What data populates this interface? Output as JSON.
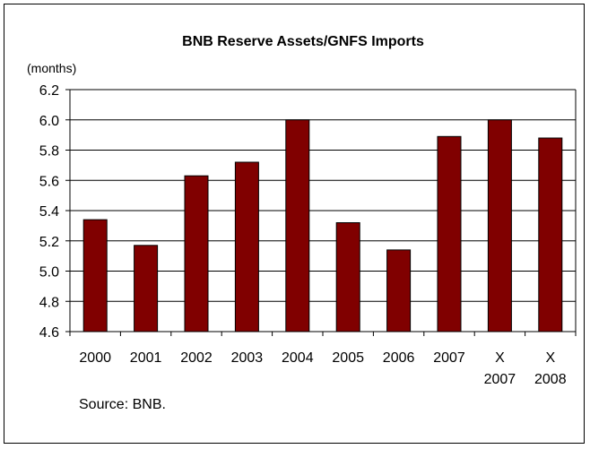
{
  "chart_data": {
    "type": "bar",
    "title": "BNB Reserve Assets/GNFS Imports",
    "ylabel": "(months)",
    "xlabel": "",
    "categories": [
      [
        "2000"
      ],
      [
        "2001"
      ],
      [
        "2002"
      ],
      [
        "2003"
      ],
      [
        "2004"
      ],
      [
        "2005"
      ],
      [
        "2006"
      ],
      [
        "2007"
      ],
      [
        "X",
        "2007"
      ],
      [
        "X",
        "2008"
      ]
    ],
    "values": [
      5.34,
      5.17,
      5.63,
      5.72,
      6.0,
      5.32,
      5.14,
      5.89,
      6.0,
      5.88
    ],
    "ylim": [
      4.6,
      6.2
    ],
    "yticks": [
      "4.6",
      "4.8",
      "5.0",
      "5.2",
      "5.4",
      "5.6",
      "5.8",
      "6.0",
      "6.2"
    ],
    "grid": true,
    "bar_color": "#800000",
    "source_note": "Source: BNB."
  }
}
